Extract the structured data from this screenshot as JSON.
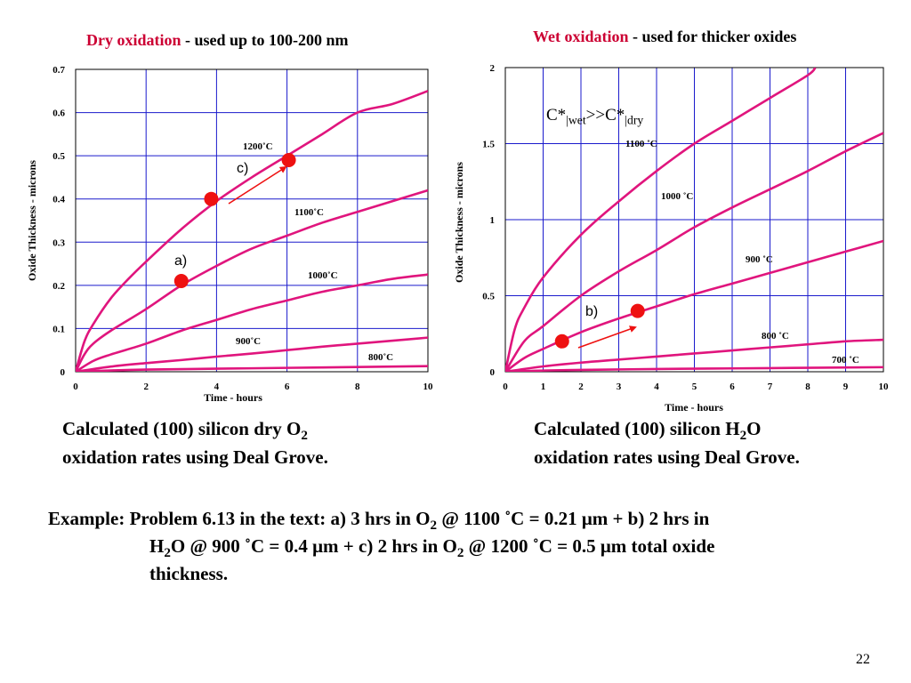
{
  "accent_color": "#cc0033",
  "curve_color": "#e0157d",
  "grid_color": "#1a1acc",
  "marker_color": "#ee1111",
  "chart_data": [
    {
      "type": "line",
      "title": {
        "accent": "Dry oxidation",
        "rest": " - used up to 100-200 nm"
      },
      "xlabel": "Time - hours",
      "ylabel": "Oxide Thickness - microns",
      "xlim": [
        0,
        10
      ],
      "ylim": [
        0,
        0.7
      ],
      "x_ticks": [
        "0",
        "2",
        "4",
        "6",
        "8",
        "10"
      ],
      "y_ticks": [
        "0",
        "0.1",
        "0.2",
        "0.3",
        "0.4",
        "0.5",
        "0.6",
        "0.7"
      ],
      "grid": true,
      "series": [
        {
          "name": "1200˚C",
          "x": [
            0,
            0.25,
            0.5,
            1,
            1.5,
            2,
            3,
            4,
            5,
            6,
            7,
            8,
            9,
            10
          ],
          "y": [
            0,
            0.07,
            0.11,
            0.17,
            0.215,
            0.255,
            0.33,
            0.395,
            0.45,
            0.5,
            0.55,
            0.6,
            0.62,
            0.65
          ]
        },
        {
          "name": "1100˚C",
          "x": [
            0,
            0.25,
            0.5,
            1,
            2,
            3,
            4,
            5,
            6,
            7,
            8,
            9,
            10
          ],
          "y": [
            0,
            0.04,
            0.065,
            0.095,
            0.145,
            0.2,
            0.245,
            0.285,
            0.315,
            0.345,
            0.37,
            0.395,
            0.42
          ]
        },
        {
          "name": "1000˚C",
          "x": [
            0,
            0.5,
            1,
            2,
            3,
            4,
            5,
            6,
            7,
            8,
            9,
            10
          ],
          "y": [
            0,
            0.025,
            0.04,
            0.065,
            0.095,
            0.12,
            0.145,
            0.165,
            0.185,
            0.2,
            0.215,
            0.225
          ]
        },
        {
          "name": "900˚C",
          "x": [
            0,
            1,
            2,
            3,
            4,
            5,
            6,
            7,
            8,
            9,
            10
          ],
          "y": [
            0,
            0.012,
            0.02,
            0.027,
            0.035,
            0.042,
            0.05,
            0.058,
            0.065,
            0.072,
            0.079
          ]
        },
        {
          "name": "800˚C",
          "x": [
            0,
            1,
            2,
            4,
            6,
            8,
            10
          ],
          "y": [
            0,
            0.003,
            0.005,
            0.007,
            0.009,
            0.011,
            0.013
          ]
        }
      ],
      "markers": [
        {
          "label": "a)",
          "x": 3,
          "y": 0.21
        },
        {
          "label": "",
          "x": 3.85,
          "y": 0.4
        },
        {
          "label": "c)",
          "x": 6.05,
          "y": 0.49
        }
      ]
    },
    {
      "type": "line",
      "title": {
        "accent": "Wet oxidation",
        "rest": " - used for thicker oxides"
      },
      "xlabel": "Time - hours",
      "ylabel": "Oxide Thickness - microns",
      "xlim": [
        0,
        10
      ],
      "ylim": [
        0,
        2
      ],
      "x_ticks": [
        "0",
        "1",
        "2",
        "3",
        "4",
        "5",
        "6",
        "7",
        "8",
        "9",
        "10"
      ],
      "y_ticks": [
        "0",
        "0.5",
        "1",
        "1.5",
        "2"
      ],
      "grid": true,
      "series": [
        {
          "name": "1100 ˚C",
          "x": [
            0,
            0.25,
            0.5,
            1,
            2,
            3,
            4,
            5,
            6,
            7,
            8,
            8.2
          ],
          "y": [
            0,
            0.28,
            0.42,
            0.62,
            0.9,
            1.12,
            1.32,
            1.5,
            1.65,
            1.8,
            1.95,
            2.0
          ]
        },
        {
          "name": "1000 ˚C",
          "x": [
            0,
            0.5,
            1,
            2,
            3,
            4,
            5,
            6,
            7,
            8,
            9,
            10
          ],
          "y": [
            0,
            0.2,
            0.3,
            0.5,
            0.66,
            0.8,
            0.95,
            1.08,
            1.2,
            1.32,
            1.45,
            1.57
          ]
        },
        {
          "name": "900 ˚C",
          "x": [
            0,
            0.5,
            1,
            2,
            3,
            4,
            5,
            6,
            7,
            8,
            9,
            10
          ],
          "y": [
            0,
            0.09,
            0.15,
            0.26,
            0.35,
            0.43,
            0.51,
            0.58,
            0.65,
            0.72,
            0.79,
            0.86
          ]
        },
        {
          "name": "800 ˚C",
          "x": [
            0,
            1,
            2,
            3,
            4,
            5,
            6,
            7,
            8,
            9,
            10
          ],
          "y": [
            0,
            0.035,
            0.06,
            0.08,
            0.1,
            0.12,
            0.14,
            0.16,
            0.18,
            0.2,
            0.21
          ]
        },
        {
          "name": "700 ˚C",
          "x": [
            0,
            1,
            2,
            4,
            6,
            8,
            10
          ],
          "y": [
            0,
            0.008,
            0.012,
            0.018,
            0.022,
            0.026,
            0.03
          ]
        }
      ],
      "markers": [
        {
          "label": "",
          "x": 1.5,
          "y": 0.2
        },
        {
          "label": "b)",
          "x": 3.5,
          "y": 0.4
        }
      ]
    }
  ],
  "wet_note": {
    "c": "C*",
    "sub1": "|wet",
    "mid": ">>C*",
    "sub2": "|dry"
  },
  "captions": {
    "dry": {
      "pre": "Calculated (100) silicon dry O",
      "sub": "2",
      "line2": "oxidation rates using Deal Grove."
    },
    "wet": {
      "pre": "Calculated (100) silicon H",
      "sub": "2",
      "post": "O",
      "line2": "oxidation rates using Deal Grove."
    }
  },
  "example": {
    "p1": "Example: Problem 6.13 in the text: a) 3 hrs in  O",
    "s1": "2",
    "p2": " @ 1100 ˚C = 0.21 μm + b) 2 hrs in",
    "p3": "H",
    "s2": "2",
    "p4": "O @ 900 ˚C =  0.4 μm + c) 2 hrs in O",
    "s3": "2",
    "p5": " @ 1200 ˚C = 0.5 μm total oxide",
    "p6": "thickness."
  },
  "page_number": "22"
}
